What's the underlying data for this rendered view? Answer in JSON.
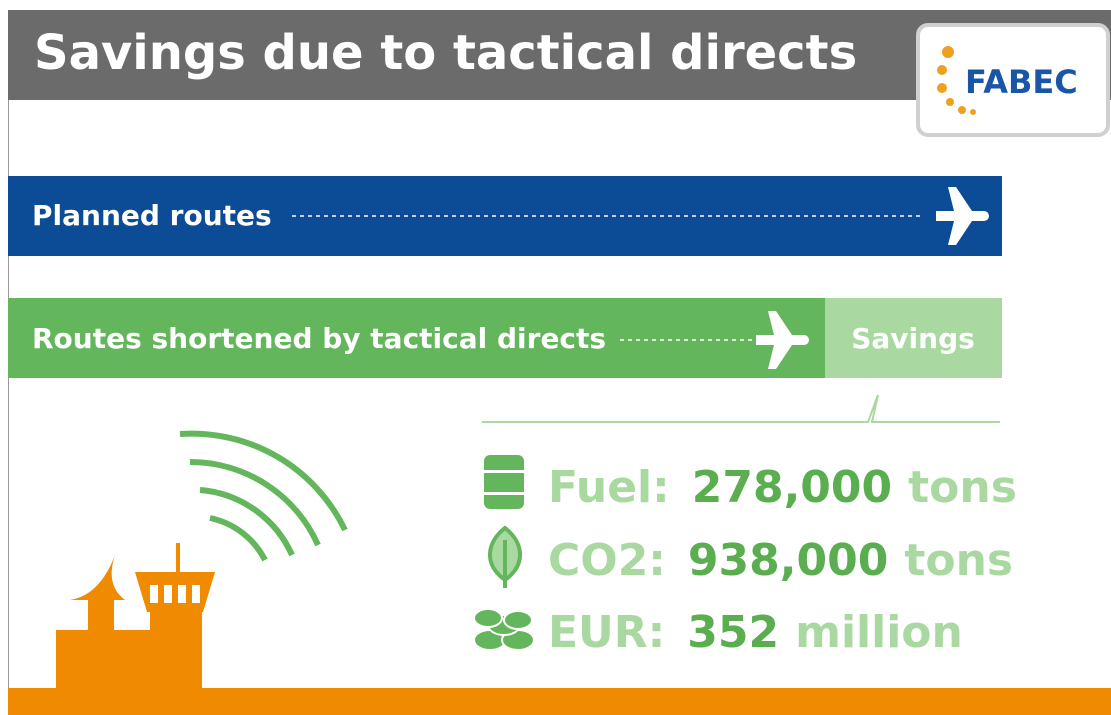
{
  "header": {
    "title": "Savings due to tactical directs",
    "logo": "FABEC"
  },
  "routes": {
    "planned": "Planned routes",
    "shortened": "Routes shortened by tactical directs",
    "savings": "Savings"
  },
  "stats": [
    {
      "label": "Fuel:",
      "value": "278,000",
      "unit": "tons"
    },
    {
      "label": "CO2:",
      "value": "938,000",
      "unit": "tons"
    },
    {
      "label": "EUR:",
      "value": "352",
      "unit": "million"
    }
  ]
}
